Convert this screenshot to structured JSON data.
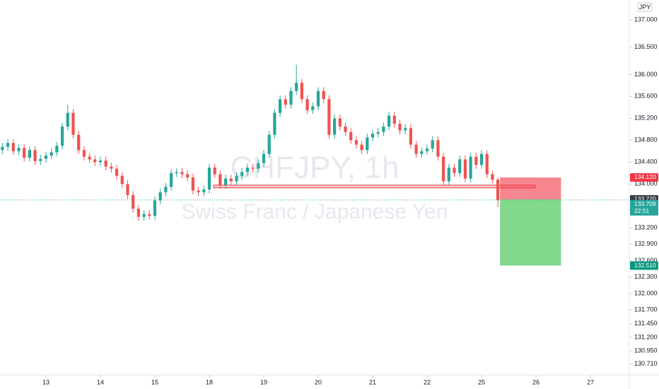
{
  "chart_data": {
    "type": "candlestick",
    "currency": "JPY",
    "watermark": [
      "CHFJPY, 1h",
      "Swiss Franc / Japanese Yen"
    ],
    "up_color": "#26a69a",
    "down_color": "#ef5350",
    "x": [
      -0.8,
      -0.7,
      -0.6,
      -0.5,
      -0.4,
      -0.3,
      -0.2,
      -0.1,
      0,
      0.1,
      0.2,
      0.3,
      0.4,
      0.5,
      0.6,
      0.7,
      0.8,
      0.9,
      1,
      1.1,
      1.2,
      1.3,
      1.4,
      1.5,
      1.6,
      1.7,
      1.8,
      1.9,
      2,
      2.1,
      2.2,
      2.3,
      2.4,
      2.5,
      2.6,
      2.7,
      2.8,
      2.9,
      3,
      3.1,
      3.2,
      3.3,
      3.4,
      3.5,
      3.6,
      3.7,
      3.8,
      3.9,
      4,
      4.1,
      4.2,
      4.3,
      4.4,
      4.5,
      4.6,
      4.7,
      4.8,
      4.9,
      5,
      5.1,
      5.2,
      5.3,
      5.4,
      5.5,
      5.6,
      5.7,
      5.8,
      5.9,
      6,
      6.1,
      6.2,
      6.3,
      6.4,
      6.5,
      6.6,
      6.7,
      6.8,
      6.9,
      7,
      7.1,
      7.2,
      7.3,
      7.4,
      7.5,
      7.6,
      7.7,
      7.8,
      7.9,
      8,
      8.1,
      8.2,
      8.3
    ],
    "open": [
      134.62,
      134.68,
      134.75,
      134.6,
      134.66,
      134.48,
      134.62,
      134.42,
      134.46,
      134.52,
      134.58,
      134.7,
      135.05,
      135.3,
      134.9,
      134.62,
      134.5,
      134.45,
      134.4,
      134.43,
      134.32,
      134.28,
      134.15,
      134.0,
      133.8,
      133.55,
      133.4,
      133.45,
      133.42,
      133.7,
      133.85,
      133.95,
      134.2,
      134.22,
      134.18,
      134.12,
      133.88,
      133.85,
      133.9,
      134.3,
      134.18,
      133.98,
      134.1,
      134.05,
      134.15,
      134.22,
      134.3,
      134.28,
      134.38,
      134.55,
      134.9,
      135.3,
      135.55,
      135.45,
      135.7,
      135.85,
      135.55,
      135.35,
      135.42,
      135.7,
      135.55,
      134.9,
      135.2,
      135.05,
      134.95,
      134.8,
      134.72,
      134.62,
      134.85,
      134.92,
      134.95,
      135.05,
      135.25,
      135.1,
      134.98,
      135.02,
      134.72,
      134.55,
      134.6,
      134.65,
      134.8,
      134.5,
      134.05,
      134.3,
      134.2,
      134.45,
      134.1,
      134.5,
      134.35,
      134.55,
      134.18,
      134.08
    ],
    "high": [
      134.75,
      134.82,
      134.82,
      134.73,
      134.73,
      134.69,
      134.69,
      134.53,
      134.59,
      134.65,
      134.77,
      135.12,
      135.45,
      135.37,
      134.97,
      134.69,
      134.57,
      134.52,
      134.5,
      134.5,
      134.39,
      134.35,
      134.22,
      134.07,
      133.87,
      133.62,
      133.52,
      133.52,
      133.77,
      133.92,
      134.02,
      134.27,
      134.29,
      134.29,
      134.25,
      134.19,
      133.95,
      133.97,
      134.37,
      134.37,
      134.25,
      134.17,
      134.17,
      134.22,
      134.29,
      134.37,
      134.37,
      134.45,
      134.62,
      134.97,
      135.37,
      135.62,
      135.62,
      135.77,
      136.18,
      135.92,
      135.62,
      135.49,
      135.77,
      135.77,
      135.62,
      135.27,
      135.27,
      135.12,
      135.02,
      134.87,
      134.79,
      134.92,
      134.99,
      135.02,
      135.12,
      135.32,
      135.32,
      135.17,
      135.09,
      135.09,
      134.79,
      134.67,
      134.72,
      134.87,
      134.87,
      134.57,
      134.37,
      134.37,
      134.52,
      134.52,
      134.57,
      134.57,
      134.62,
      134.62,
      134.25,
      134.12
    ],
    "low": [
      134.55,
      134.61,
      134.53,
      134.53,
      134.41,
      134.41,
      134.35,
      134.35,
      134.39,
      134.45,
      134.51,
      134.63,
      134.98,
      134.83,
      134.55,
      134.43,
      134.38,
      134.33,
      134.33,
      134.25,
      134.21,
      134.08,
      133.93,
      133.73,
      133.48,
      133.33,
      133.33,
      133.35,
      133.35,
      133.63,
      133.78,
      133.88,
      134.13,
      134.11,
      134.05,
      133.81,
      133.78,
      133.78,
      133.83,
      134.11,
      133.91,
      133.91,
      133.98,
      133.98,
      134.08,
      134.15,
      134.21,
      134.21,
      134.31,
      134.48,
      134.83,
      135.23,
      135.38,
      135.38,
      135.63,
      135.48,
      135.28,
      135.28,
      135.35,
      135.48,
      134.83,
      134.83,
      134.98,
      134.88,
      134.73,
      134.65,
      134.55,
      134.55,
      134.78,
      134.85,
      134.88,
      134.98,
      135.03,
      134.91,
      134.91,
      134.65,
      134.48,
      134.48,
      134.53,
      134.58,
      134.43,
      133.98,
      133.98,
      134.13,
      134.13,
      134.03,
      134.03,
      134.28,
      134.28,
      134.11,
      134.01,
      133.58
    ],
    "close": [
      134.68,
      134.75,
      134.6,
      134.66,
      134.48,
      134.62,
      134.42,
      134.46,
      134.52,
      134.58,
      134.7,
      135.05,
      135.3,
      134.9,
      134.62,
      134.5,
      134.45,
      134.4,
      134.43,
      134.32,
      134.28,
      134.15,
      134.0,
      133.8,
      133.55,
      133.4,
      133.45,
      133.42,
      133.7,
      133.85,
      133.95,
      134.2,
      134.22,
      134.18,
      134.12,
      133.88,
      133.85,
      133.9,
      134.3,
      134.18,
      133.98,
      134.1,
      134.05,
      134.15,
      134.22,
      134.3,
      134.28,
      134.38,
      134.55,
      134.9,
      135.3,
      135.55,
      135.45,
      135.7,
      135.85,
      135.55,
      135.35,
      135.42,
      135.7,
      135.55,
      134.9,
      135.2,
      135.05,
      134.95,
      134.8,
      134.72,
      134.62,
      134.85,
      134.92,
      134.95,
      135.05,
      135.25,
      135.1,
      134.98,
      135.02,
      134.72,
      134.55,
      134.6,
      134.65,
      134.8,
      134.5,
      134.05,
      134.3,
      134.2,
      134.45,
      134.1,
      134.5,
      134.35,
      134.55,
      134.18,
      134.08,
      133.709
    ],
    "xlim": [
      -0.844,
      10.714
    ],
    "xticks": [
      {
        "value": 0,
        "label": "13"
      },
      {
        "value": 1,
        "label": "14"
      },
      {
        "value": 2,
        "label": "15"
      },
      {
        "value": 3,
        "label": "18"
      },
      {
        "value": 4,
        "label": "19"
      },
      {
        "value": 5,
        "label": "20"
      },
      {
        "value": 6,
        "label": "21"
      },
      {
        "value": 7,
        "label": "22"
      },
      {
        "value": 8,
        "label": "25"
      },
      {
        "value": 9,
        "label": "26"
      },
      {
        "value": 10,
        "label": "27"
      }
    ],
    "ylim": [
      130.514,
      137.362
    ],
    "yticks": [
      {
        "value": 137,
        "label": "137.000"
      },
      {
        "value": 136.5,
        "label": "136.500"
      },
      {
        "value": 136,
        "label": "136.000"
      },
      {
        "value": 135.6,
        "label": "135.600"
      },
      {
        "value": 135.2,
        "label": "135.200"
      },
      {
        "value": 134.8,
        "label": "134.800"
      },
      {
        "value": 134.4,
        "label": "134.400"
      },
      {
        "value": 134,
        "label": "134.000"
      },
      {
        "value": 133.2,
        "label": "133.200"
      },
      {
        "value": 132.9,
        "label": "132.900"
      },
      {
        "value": 132.6,
        "label": "132.600"
      },
      {
        "value": 132.3,
        "label": "132.300"
      },
      {
        "value": 132,
        "label": "132.000"
      },
      {
        "value": 131.7,
        "label": "131.700"
      },
      {
        "value": 131.45,
        "label": "131.450"
      },
      {
        "value": 131.2,
        "label": "131.200"
      },
      {
        "value": 130.95,
        "label": "130.950"
      },
      {
        "value": 130.71,
        "label": "130.710"
      }
    ],
    "rectangle": {
      "top": 133.98,
      "bottom": 133.93,
      "x_start": 3.08,
      "x_end": 8.99,
      "color": "#f23645"
    },
    "position": {
      "x_start": 8.34,
      "x_end": 9.46,
      "stop": {
        "value": 134.12,
        "label": "134.120",
        "color": "#f23645"
      },
      "entry": {
        "value": 133.72,
        "label": "133.720",
        "color": "#363a45"
      },
      "target": {
        "value": 132.51,
        "label": "132.510",
        "color": "#089981"
      }
    },
    "last_price": {
      "value": 133.709,
      "label": "133.709",
      "countdown": "22:51",
      "color": "#26a69a"
    }
  }
}
